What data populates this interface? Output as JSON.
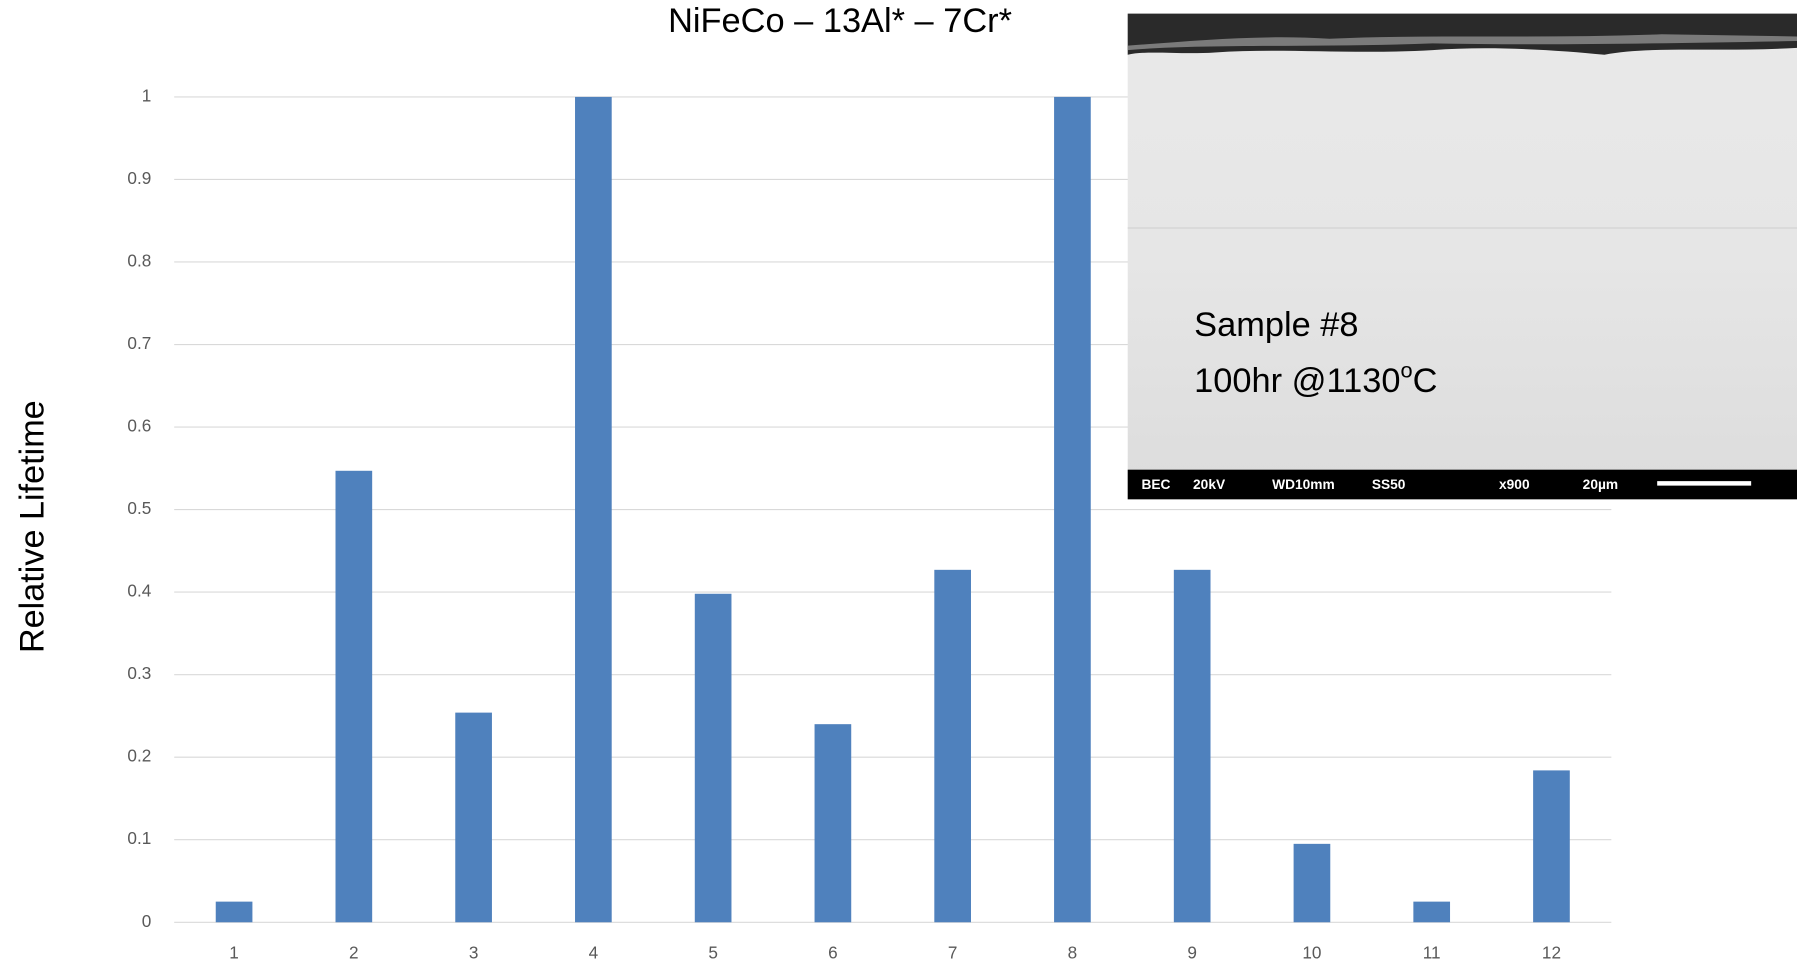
{
  "chart_data": {
    "type": "bar",
    "title": "NiFeCo – 13Al* – 7Cr*",
    "y_label": "Relative Lifetime",
    "categories": [
      "1",
      "2",
      "3",
      "4",
      "5",
      "6",
      "7",
      "8",
      "9",
      "10",
      "11",
      "12"
    ],
    "values": [
      0.025,
      0.547,
      0.254,
      1,
      0.398,
      0.24,
      0.427,
      1,
      0.427,
      0.095,
      0.025,
      0.184
    ],
    "color": "#4f81bd",
    "ylim": [
      0,
      1
    ],
    "yticks": [
      0,
      0.1,
      0.2,
      0.3,
      0.4,
      0.5,
      0.6,
      0.7,
      0.8,
      0.9,
      1
    ],
    "grid": true
  },
  "inset": {
    "line1": "Sample #8",
    "line2": "100hr @1130",
    "line2_sup": "o",
    "line2_end": "C",
    "info_bar": [
      "BEC",
      "20kV",
      "WD10mm",
      "SS50",
      "x900",
      "20µm"
    ]
  }
}
